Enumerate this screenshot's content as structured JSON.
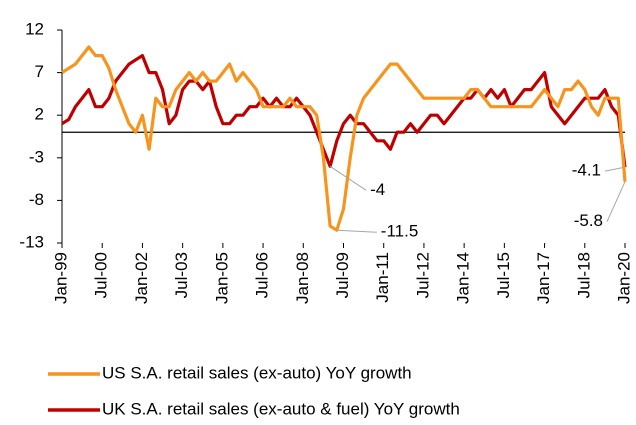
{
  "chart_data": {
    "type": "line",
    "categories": [
      "Jan-99",
      null,
      null,
      null,
      null,
      null,
      "Jul-00",
      null,
      null,
      null,
      null,
      null,
      "Jan-02",
      null,
      null,
      null,
      null,
      null,
      "Jul-03",
      null,
      null,
      null,
      null,
      null,
      "Jan-05",
      null,
      null,
      null,
      null,
      null,
      "Jul-06",
      null,
      null,
      null,
      null,
      null,
      "Jan-08",
      null,
      null,
      null,
      null,
      null,
      "Jul-09",
      null,
      null,
      null,
      null,
      null,
      "Jan-11",
      null,
      null,
      null,
      null,
      null,
      "Jul-12",
      null,
      null,
      null,
      null,
      null,
      "Jan-14",
      null,
      null,
      null,
      null,
      null,
      "Jul-15",
      null,
      null,
      null,
      null,
      null,
      "Jan-17",
      null,
      null,
      null,
      null,
      null,
      "Jul-18",
      null,
      null,
      null,
      null,
      null,
      "Jan-20"
    ],
    "series": [
      {
        "name": "US S.A. retail sales (ex-auto) YoY growth",
        "color": "#f7941d",
        "values": [
          7,
          7.5,
          8,
          9,
          10,
          9,
          9,
          7.5,
          5,
          3,
          1,
          0,
          2,
          -2,
          4,
          3,
          3,
          5,
          6,
          7,
          6,
          7,
          6,
          6,
          7,
          8,
          6,
          7,
          6,
          5,
          3,
          3,
          3,
          3,
          4,
          3,
          3,
          3,
          2,
          -3,
          -11,
          -11.5,
          -9,
          -3,
          2,
          4,
          5,
          6,
          7,
          8,
          8,
          7,
          6,
          5,
          4,
          4,
          4,
          4,
          4,
          4,
          4,
          5,
          5,
          4,
          3,
          3,
          3,
          3,
          3,
          3,
          3,
          4,
          5,
          4,
          3,
          5,
          5,
          6,
          5,
          3,
          2,
          4,
          4,
          4,
          -5.8
        ],
        "value_labels": [
          null,
          null,
          null,
          null,
          null,
          null,
          null,
          null,
          null,
          null,
          null,
          null,
          null,
          null,
          null,
          null,
          null,
          null,
          null,
          null,
          null,
          null,
          null,
          null,
          null,
          null,
          null,
          null,
          null,
          null,
          null,
          null,
          null,
          null,
          null,
          null,
          null,
          null,
          null,
          null,
          null,
          "-11.5",
          null,
          null,
          null,
          null,
          null,
          null,
          null,
          null,
          null,
          null,
          null,
          null,
          null,
          null,
          null,
          null,
          null,
          null,
          null,
          null,
          null,
          null,
          null,
          null,
          null,
          null,
          null,
          null,
          null,
          null,
          null,
          null,
          null,
          null,
          null,
          null,
          null,
          null,
          null,
          null,
          null,
          null,
          "-5.8"
        ]
      },
      {
        "name": "UK S.A. retail sales (ex-auto & fuel) YoY growth",
        "color": "#c00000",
        "values": [
          1,
          1.5,
          3,
          4,
          5,
          3,
          3,
          4,
          6,
          7,
          8,
          8.5,
          9,
          7,
          7,
          5,
          1,
          2,
          5,
          6,
          6,
          5,
          6,
          3,
          1,
          1,
          2,
          2,
          3,
          3,
          4,
          3,
          4,
          3,
          3,
          4,
          3,
          2,
          0,
          -2,
          -4,
          -1,
          1,
          2,
          1,
          1,
          0,
          -1,
          -1,
          -2,
          0,
          0,
          1,
          0,
          1,
          2,
          2,
          1,
          2,
          3,
          4,
          4,
          5,
          4,
          5,
          4,
          5,
          3,
          4,
          5,
          5,
          6,
          7,
          3,
          2,
          1,
          2,
          3,
          4,
          4,
          4,
          5,
          3,
          2,
          -4.1
        ],
        "value_labels": [
          null,
          null,
          null,
          null,
          null,
          null,
          null,
          null,
          null,
          null,
          null,
          null,
          null,
          null,
          null,
          null,
          null,
          null,
          null,
          null,
          null,
          null,
          null,
          null,
          null,
          null,
          null,
          null,
          null,
          null,
          null,
          null,
          null,
          null,
          null,
          null,
          null,
          null,
          null,
          null,
          "-4",
          null,
          null,
          null,
          null,
          null,
          null,
          null,
          null,
          null,
          null,
          null,
          null,
          null,
          null,
          null,
          null,
          null,
          null,
          null,
          null,
          null,
          null,
          null,
          null,
          null,
          null,
          null,
          null,
          null,
          null,
          null,
          null,
          null,
          null,
          null,
          null,
          null,
          null,
          null,
          null,
          null,
          null,
          null,
          "-4.1"
        ]
      }
    ],
    "ylim": [
      -13,
      12
    ],
    "yticks": [
      -13,
      -8,
      -3,
      2,
      7,
      12
    ],
    "grid": false
  }
}
